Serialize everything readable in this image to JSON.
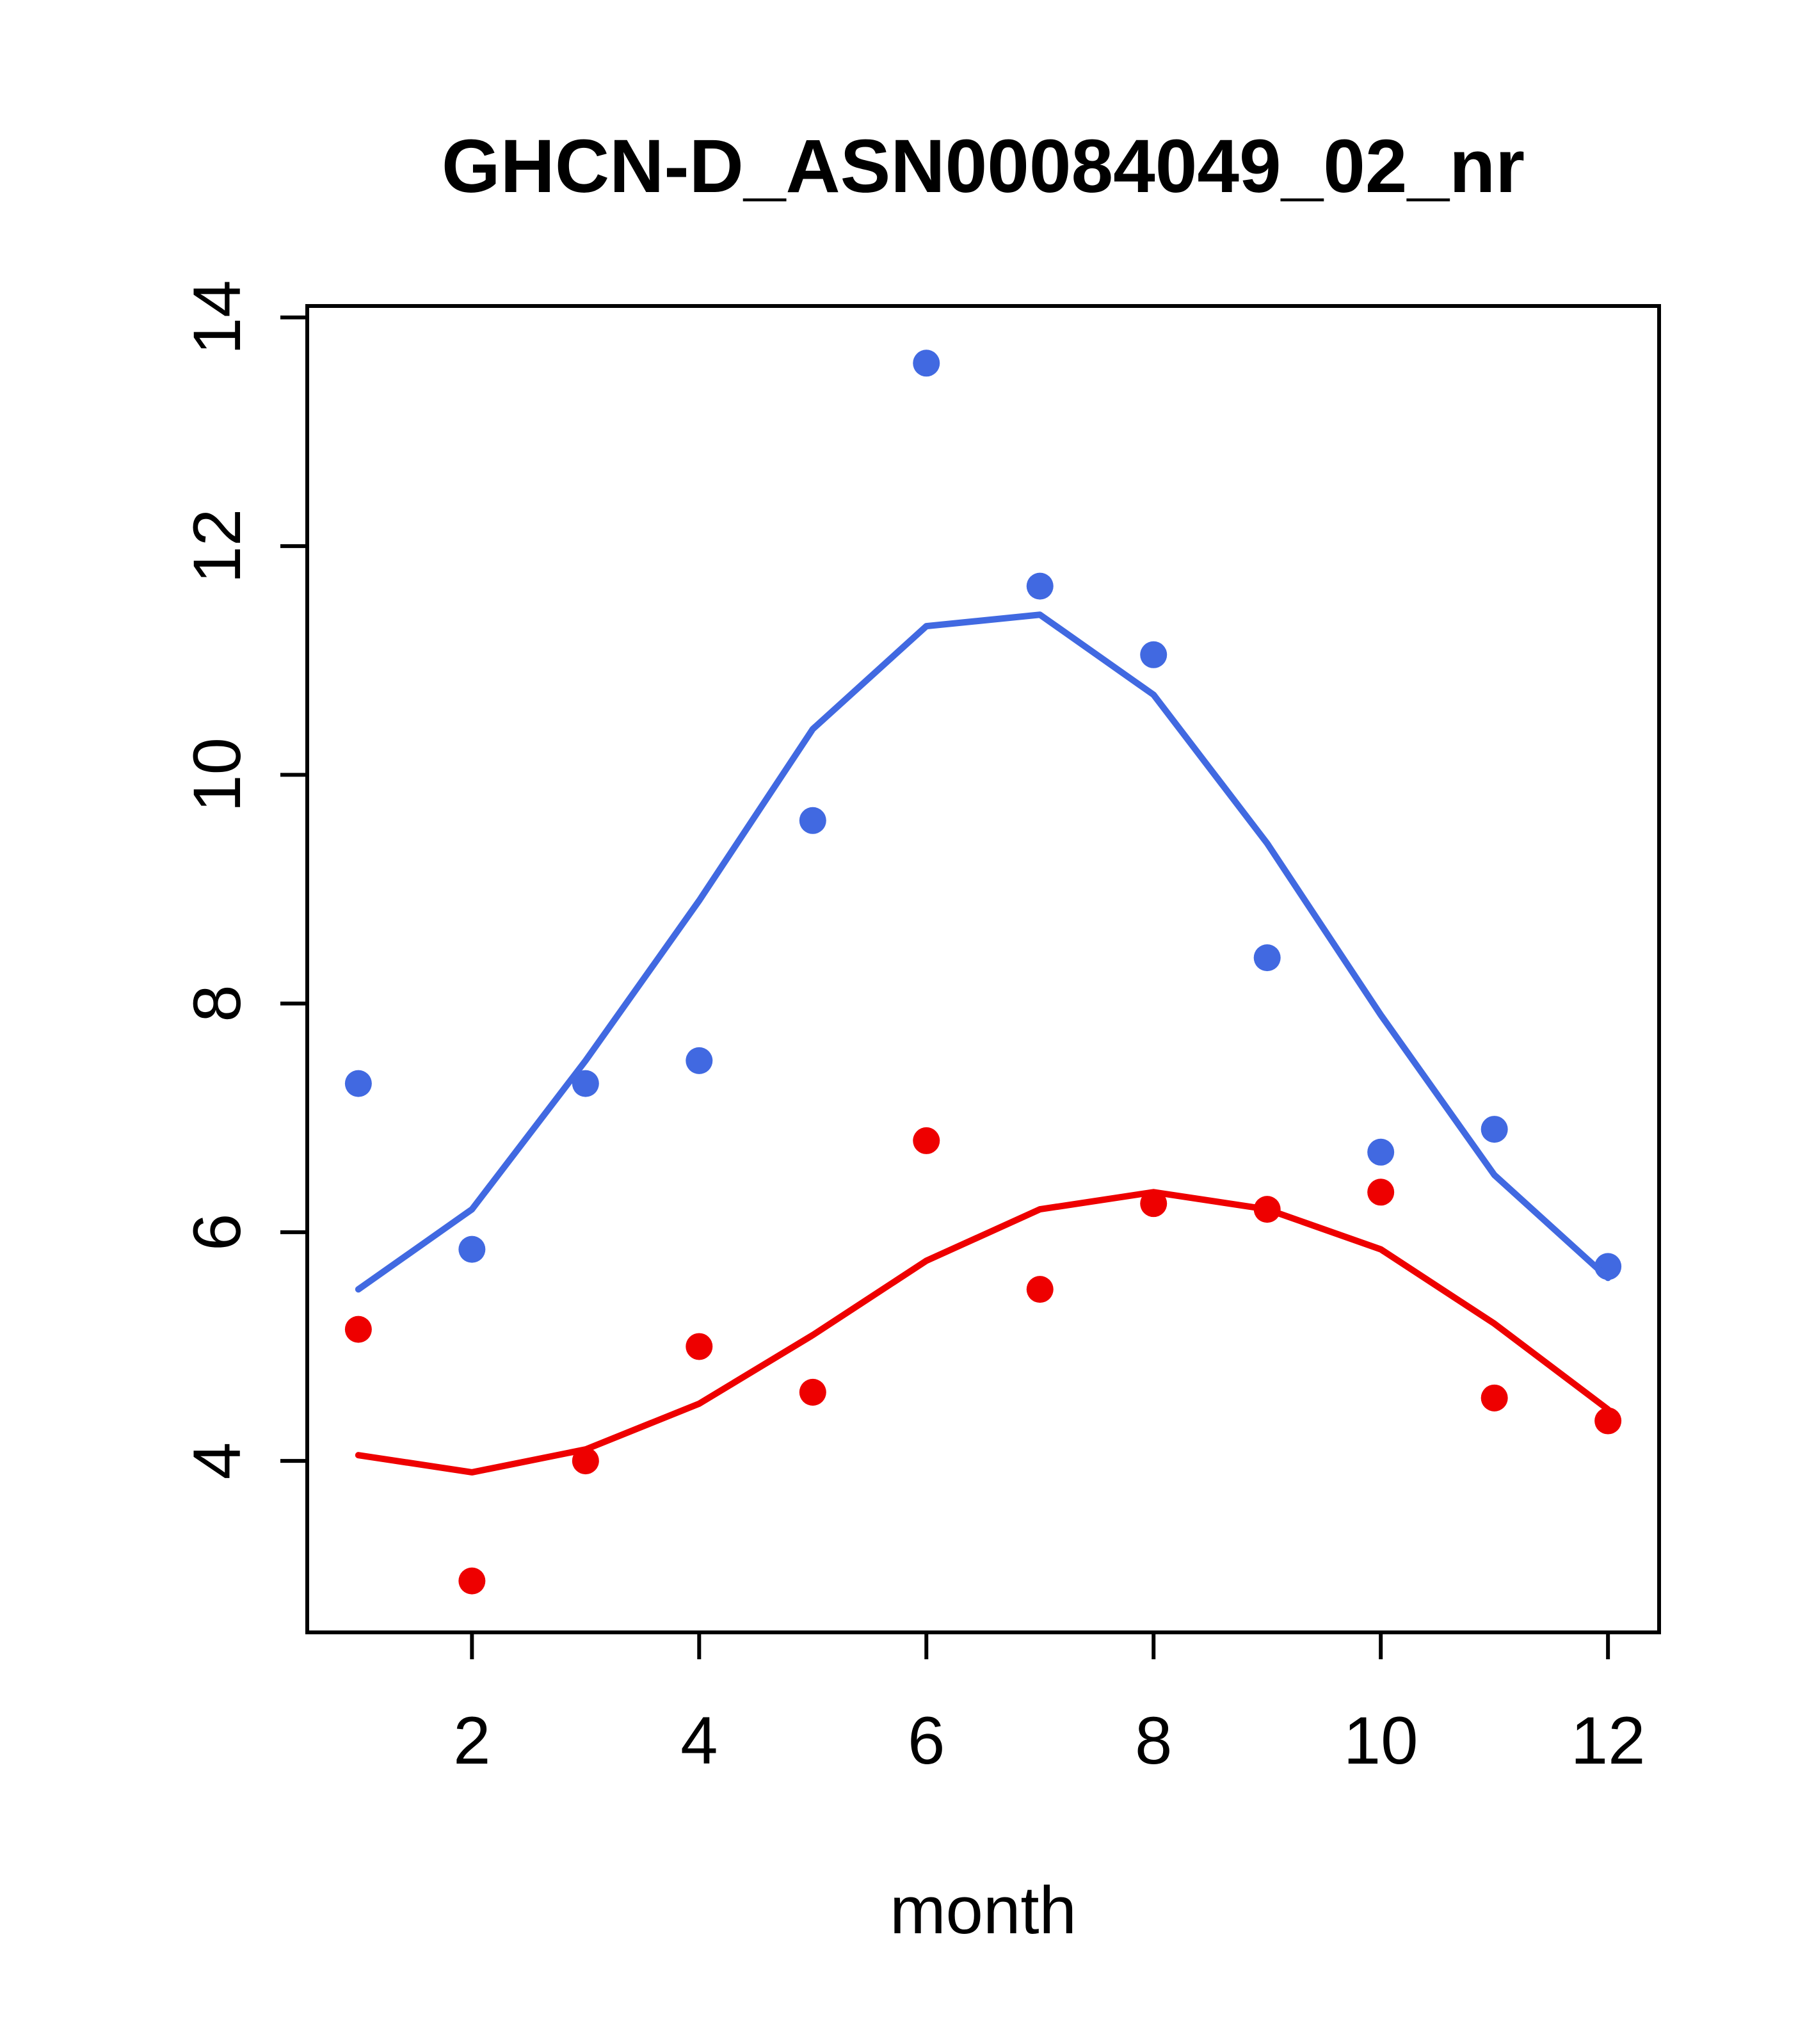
{
  "chart_data": {
    "type": "scatter",
    "title": "GHCN-D_ASN00084049_02_nr",
    "xlabel": "month",
    "ylabel": "",
    "xlim": [
      0.55,
      12.45
    ],
    "ylim": [
      2.5,
      14.1
    ],
    "x_ticks": [
      2,
      4,
      6,
      8,
      10,
      12
    ],
    "y_ticks": [
      4,
      6,
      8,
      10,
      12,
      14
    ],
    "grid": false,
    "legend": "none",
    "colors": {
      "series_blue": "#4169E1",
      "series_red": "#EE0000",
      "axis": "#000000",
      "background": "#FFFFFF"
    },
    "categories": [
      1,
      2,
      3,
      4,
      5,
      6,
      7,
      8,
      9,
      10,
      11,
      12
    ],
    "series": [
      {
        "name": "blue-points",
        "type": "points",
        "color": "#4169E1",
        "x": [
          1,
          2,
          3,
          4,
          5,
          6,
          7,
          8,
          9,
          10,
          11,
          12
        ],
        "y": [
          7.3,
          5.85,
          7.3,
          7.5,
          9.6,
          13.6,
          11.65,
          11.05,
          8.4,
          6.7,
          6.9,
          5.7
        ]
      },
      {
        "name": "red-points",
        "type": "points",
        "color": "#EE0000",
        "x": [
          1,
          2,
          3,
          4,
          5,
          6,
          7,
          8,
          9,
          10,
          11,
          12
        ],
        "y": [
          5.15,
          2.95,
          4.0,
          5.0,
          4.6,
          6.8,
          5.5,
          6.25,
          6.2,
          6.35,
          4.55,
          4.35
        ]
      },
      {
        "name": "blue-smooth-line",
        "type": "line",
        "color": "#4169E1",
        "x": [
          1,
          2,
          3,
          4,
          5,
          6,
          7,
          8,
          9,
          10,
          11,
          12
        ],
        "y": [
          5.5,
          6.2,
          7.5,
          8.9,
          10.4,
          11.3,
          11.4,
          10.7,
          9.4,
          7.9,
          6.5,
          5.6
        ]
      },
      {
        "name": "red-smooth-line",
        "type": "line",
        "color": "#EE0000",
        "x": [
          1,
          2,
          3,
          4,
          5,
          6,
          7,
          8,
          9,
          10,
          11,
          12
        ],
        "y": [
          4.05,
          3.9,
          4.1,
          4.5,
          5.1,
          5.75,
          6.2,
          6.35,
          6.2,
          5.85,
          5.2,
          4.45
        ]
      }
    ]
  }
}
